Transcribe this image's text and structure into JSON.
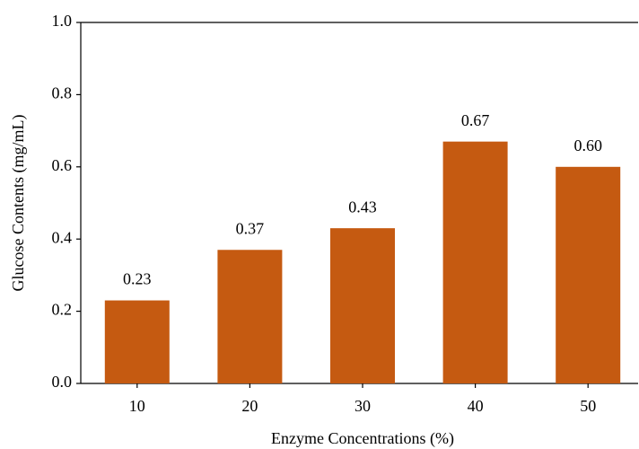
{
  "chart_data": {
    "type": "bar",
    "x_label": "Enzyme Concentrations (%)",
    "y_label": "Glucose Contents (mg/mL)",
    "categories": [
      "10",
      "20",
      "30",
      "40",
      "50"
    ],
    "values": [
      0.23,
      0.37,
      0.43,
      0.67,
      0.6
    ],
    "value_labels": [
      "0.23",
      "0.37",
      "0.43",
      "0.67",
      "0.60"
    ],
    "color": "#c55a11",
    "ylim": [
      0,
      1
    ],
    "yticks": [
      {
        "value": 0,
        "label": "0.0"
      },
      {
        "value": 0.2,
        "label": "0.2"
      },
      {
        "value": 0.4,
        "label": "0.4"
      },
      {
        "value": 0.6,
        "label": "0.6"
      },
      {
        "value": 0.8,
        "label": "0.8"
      },
      {
        "value": 1,
        "label": "1.0"
      }
    ],
    "grid": false
  }
}
